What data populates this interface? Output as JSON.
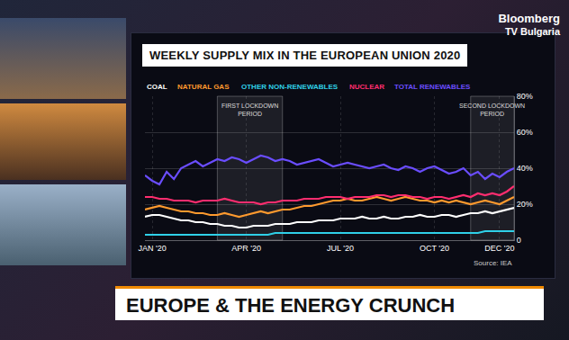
{
  "chart_data": {
    "type": "line",
    "title": "WEEKLY SUPPLY MIX IN THE EUROPEAN UNION 2020",
    "source": "Source: IEA",
    "categories": [
      null,
      "JAN '20",
      null,
      null,
      null,
      null,
      null,
      null,
      null,
      null,
      null,
      null,
      null,
      null,
      "APR '20",
      null,
      null,
      null,
      null,
      null,
      null,
      null,
      null,
      null,
      null,
      null,
      null,
      "JUL '20",
      null,
      null,
      null,
      null,
      null,
      null,
      null,
      null,
      null,
      null,
      null,
      null,
      "OCT '20",
      null,
      null,
      null,
      null,
      null,
      null,
      null,
      null,
      "DEC '20",
      null,
      null
    ],
    "series": [
      {
        "name": "COAL",
        "color": "#ffffff",
        "values": [
          13,
          14,
          14,
          13,
          12,
          11,
          11,
          10,
          10,
          9,
          9,
          8,
          8,
          7,
          7,
          8,
          8,
          8,
          9,
          9,
          9,
          10,
          10,
          10,
          11,
          11,
          11,
          12,
          12,
          12,
          13,
          12,
          12,
          13,
          12,
          12,
          13,
          13,
          14,
          13,
          13,
          14,
          14,
          13,
          14,
          15,
          15,
          16,
          15,
          16,
          17,
          18
        ]
      },
      {
        "name": "NATURAL GAS",
        "color": "#ff9a2e",
        "values": [
          17,
          18,
          19,
          18,
          17,
          16,
          16,
          15,
          15,
          14,
          14,
          15,
          14,
          13,
          14,
          15,
          16,
          15,
          16,
          17,
          17,
          18,
          19,
          19,
          20,
          21,
          22,
          22,
          23,
          22,
          22,
          23,
          24,
          23,
          22,
          23,
          24,
          23,
          22,
          22,
          21,
          22,
          21,
          22,
          21,
          20,
          21,
          22,
          21,
          20,
          22,
          24
        ]
      },
      {
        "name": "OTHER NON-RENEWABLES",
        "color": "#2fd0e8",
        "values": [
          3,
          3,
          3,
          3,
          3,
          3,
          3,
          3,
          3,
          3,
          3,
          3,
          3,
          3,
          3,
          3,
          3,
          3,
          4,
          4,
          4,
          4,
          4,
          4,
          4,
          4,
          4,
          4,
          4,
          4,
          4,
          4,
          4,
          4,
          4,
          4,
          4,
          4,
          4,
          4,
          4,
          4,
          4,
          4,
          4,
          4,
          4,
          5,
          5,
          5,
          5,
          5
        ]
      },
      {
        "name": "NUCLEAR",
        "color": "#ff2d6f",
        "values": [
          24,
          24,
          23,
          23,
          22,
          22,
          22,
          21,
          22,
          22,
          22,
          23,
          22,
          21,
          21,
          21,
          20,
          21,
          21,
          22,
          22,
          22,
          23,
          23,
          23,
          24,
          24,
          24,
          23,
          24,
          24,
          24,
          25,
          25,
          24,
          25,
          25,
          24,
          24,
          23,
          24,
          24,
          23,
          24,
          25,
          24,
          26,
          25,
          26,
          25,
          27,
          30
        ]
      },
      {
        "name": "TOTAL RENEWABLES",
        "color": "#6a4dff",
        "values": [
          36,
          33,
          31,
          38,
          34,
          40,
          42,
          44,
          41,
          43,
          45,
          44,
          46,
          45,
          43,
          45,
          47,
          46,
          44,
          45,
          44,
          42,
          43,
          44,
          45,
          43,
          41,
          42,
          43,
          42,
          41,
          40,
          41,
          42,
          40,
          39,
          41,
          40,
          38,
          40,
          41,
          39,
          37,
          38,
          40,
          36,
          38,
          34,
          37,
          35,
          38,
          40
        ]
      }
    ],
    "periods": [
      {
        "label": "FIRST LOCKDOWN PERIOD",
        "start": 10,
        "end": 19
      },
      {
        "label": "SECOND LOCKDOWN PERIOD",
        "start": 45,
        "end": 51
      }
    ],
    "ylim": [
      0,
      80
    ],
    "yticks": [
      0,
      {
        "value": 20,
        "label": "20%"
      },
      {
        "value": 40,
        "label": "40%"
      },
      {
        "value": 60,
        "label": "60%"
      },
      {
        "value": 80,
        "label": "80%"
      }
    ],
    "grid": true
  },
  "headline": "EUROPE & THE ENERGY CRUNCH",
  "logo": [
    "Bloomberg",
    "TV Bulgaria"
  ]
}
